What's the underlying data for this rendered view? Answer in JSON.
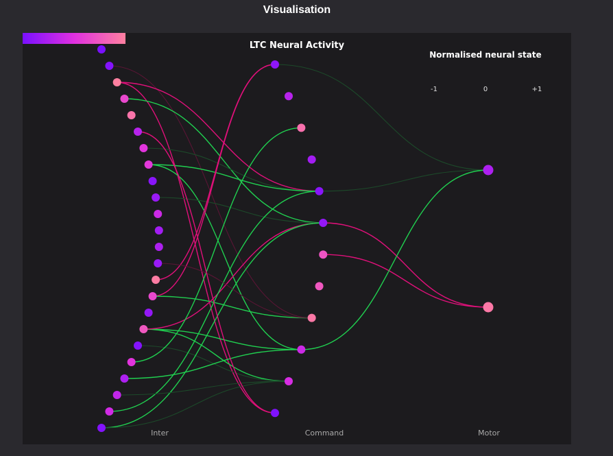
{
  "window": {
    "title": "Visualisation"
  },
  "chart_data": {
    "type": "network",
    "title": "LTC Neural Activity",
    "legend": {
      "title": "Normalised neural state",
      "ticks": [
        "-1",
        "0",
        "+1"
      ],
      "colors": [
        "#7a10ff",
        "#e030e0",
        "#ff80a0"
      ]
    },
    "layers": [
      {
        "name": "Inter",
        "state": [
          -1,
          -0.9,
          1,
          0.3,
          0.85,
          -0.4,
          0.05,
          0.1,
          -0.85,
          -0.7,
          -0.2,
          -0.6,
          -0.5,
          -0.7,
          0.95,
          0.3,
          -0.75,
          0.5,
          -0.9,
          0.05,
          -0.5,
          -0.3,
          -0.15,
          -0.9
        ]
      },
      {
        "name": "Command",
        "state": [
          -0.8,
          -0.4,
          0.8,
          -0.6,
          -0.85,
          -0.75,
          0.45,
          0.5,
          0.9,
          -0.2,
          -0.1,
          -0.95
        ]
      },
      {
        "name": "Motor",
        "state": [
          -0.5,
          0.9
        ]
      }
    ],
    "synapses": [
      {
        "from": [
          0,
          1
        ],
        "to": [
          1,
          8
        ],
        "polarity": "inhibitory",
        "active": false
      },
      {
        "from": [
          0,
          2
        ],
        "to": [
          1,
          4
        ],
        "polarity": "inhibitory",
        "active": true
      },
      {
        "from": [
          0,
          2
        ],
        "to": [
          1,
          11
        ],
        "polarity": "inhibitory",
        "active": true
      },
      {
        "from": [
          0,
          3
        ],
        "to": [
          1,
          5
        ],
        "polarity": "excitatory",
        "active": true
      },
      {
        "from": [
          0,
          6
        ],
        "to": [
          1,
          4
        ],
        "polarity": "excitatory",
        "active": false
      },
      {
        "from": [
          0,
          7
        ],
        "to": [
          1,
          4
        ],
        "polarity": "excitatory",
        "active": true
      },
      {
        "from": [
          0,
          7
        ],
        "to": [
          1,
          9
        ],
        "polarity": "excitatory",
        "active": true
      },
      {
        "from": [
          0,
          9
        ],
        "to": [
          1,
          5
        ],
        "polarity": "excitatory",
        "active": false
      },
      {
        "from": [
          0,
          14
        ],
        "to": [
          1,
          0
        ],
        "polarity": "inhibitory",
        "active": true
      },
      {
        "from": [
          0,
          15
        ],
        "to": [
          1,
          0
        ],
        "polarity": "inhibitory",
        "active": true
      },
      {
        "from": [
          0,
          15
        ],
        "to": [
          1,
          8
        ],
        "polarity": "excitatory",
        "active": true
      },
      {
        "from": [
          0,
          17
        ],
        "to": [
          1,
          9
        ],
        "polarity": "excitatory",
        "active": true
      },
      {
        "from": [
          0,
          17
        ],
        "to": [
          1,
          10
        ],
        "polarity": "excitatory",
        "active": true
      },
      {
        "from": [
          0,
          17
        ],
        "to": [
          1,
          5
        ],
        "polarity": "inhibitory",
        "active": true
      },
      {
        "from": [
          0,
          18
        ],
        "to": [
          1,
          10
        ],
        "polarity": "excitatory",
        "active": false
      },
      {
        "from": [
          0,
          19
        ],
        "to": [
          1,
          2
        ],
        "polarity": "excitatory",
        "active": true
      },
      {
        "from": [
          0,
          20
        ],
        "to": [
          1,
          9
        ],
        "polarity": "excitatory",
        "active": true
      },
      {
        "from": [
          0,
          22
        ],
        "to": [
          1,
          4
        ],
        "polarity": "excitatory",
        "active": true
      },
      {
        "from": [
          0,
          23
        ],
        "to": [
          1,
          5
        ],
        "polarity": "excitatory",
        "active": true
      },
      {
        "from": [
          0,
          23
        ],
        "to": [
          1,
          10
        ],
        "polarity": "excitatory",
        "active": false
      },
      {
        "from": [
          0,
          13
        ],
        "to": [
          1,
          8
        ],
        "polarity": "inhibitory",
        "active": false
      },
      {
        "from": [
          0,
          21
        ],
        "to": [
          1,
          10
        ],
        "polarity": "excitatory",
        "active": false
      },
      {
        "from": [
          0,
          5
        ],
        "to": [
          1,
          11
        ],
        "polarity": "inhibitory",
        "active": true
      },
      {
        "from": [
          1,
          0
        ],
        "to": [
          2,
          0
        ],
        "polarity": "excitatory",
        "active": false
      },
      {
        "from": [
          1,
          4
        ],
        "to": [
          2,
          0
        ],
        "polarity": "excitatory",
        "active": false
      },
      {
        "from": [
          1,
          5
        ],
        "to": [
          2,
          1
        ],
        "polarity": "inhibitory",
        "active": true
      },
      {
        "from": [
          1,
          6
        ],
        "to": [
          2,
          1
        ],
        "polarity": "inhibitory",
        "active": true
      },
      {
        "from": [
          1,
          9
        ],
        "to": [
          2,
          0
        ],
        "polarity": "excitatory",
        "active": true
      }
    ],
    "synapse_colors": {
      "excitatory": "#20d050",
      "inhibitory": "#e0107a",
      "excitatory_faint": "#1c4a2a",
      "inhibitory_faint": "#5a1535"
    }
  }
}
